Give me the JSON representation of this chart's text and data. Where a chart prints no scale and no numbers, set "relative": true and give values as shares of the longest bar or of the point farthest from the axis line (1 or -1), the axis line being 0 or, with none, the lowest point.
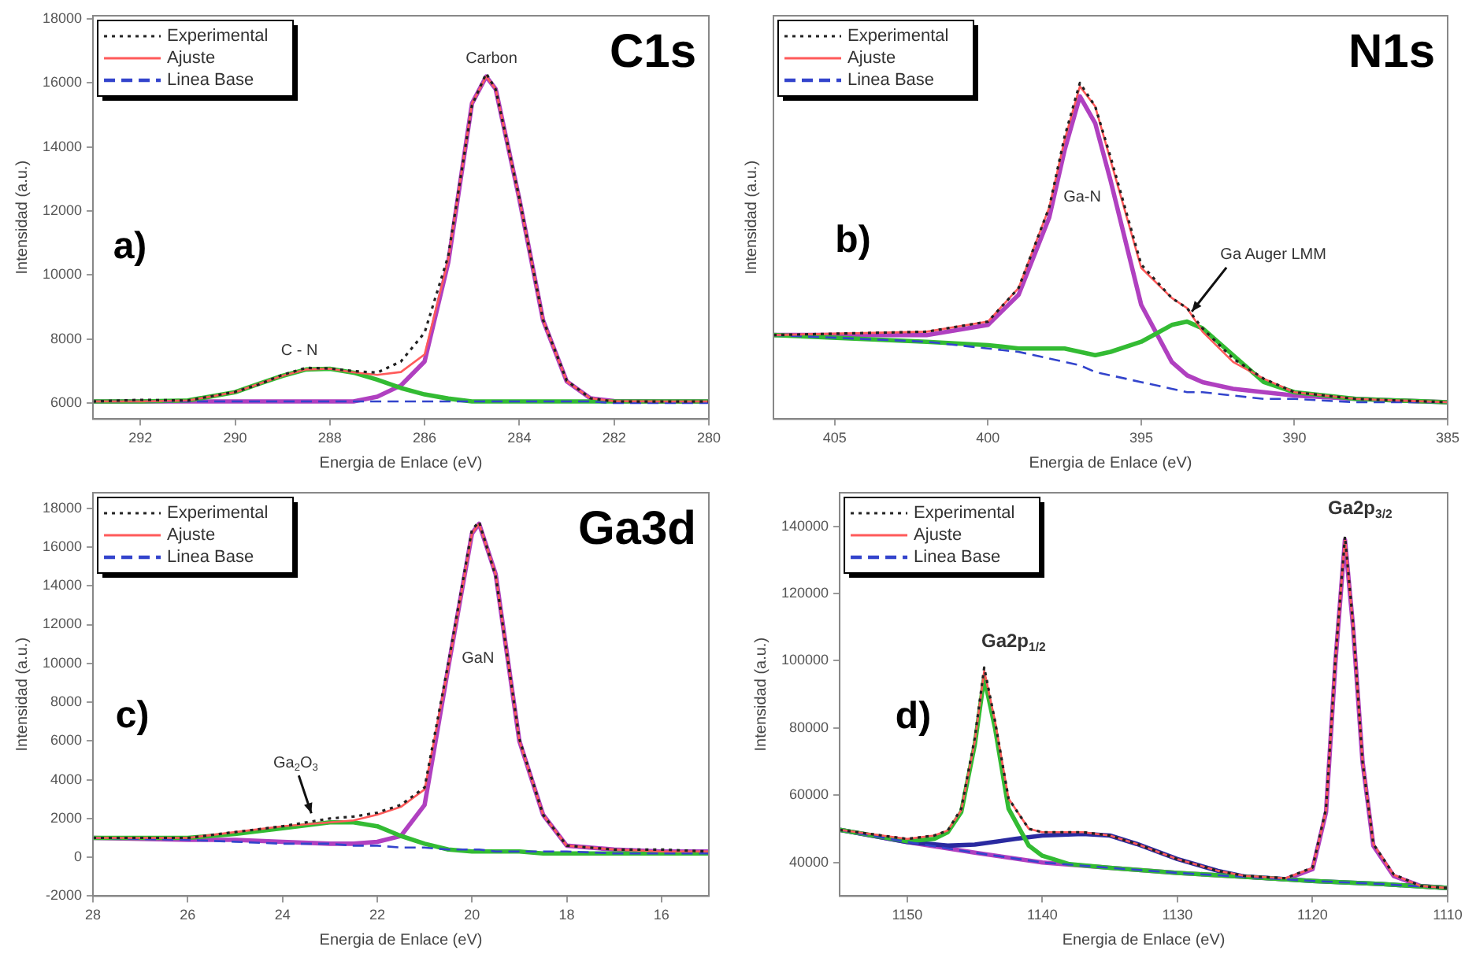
{
  "chart_data": [
    {
      "type": "line",
      "title": "C1s",
      "xlabel": "Energia de Enlace (eV)",
      "ylabel": "Intensidad (a.u.)",
      "legend": "top left",
      "grid": false,
      "marker": "none",
      "annotations": [
        "a)",
        "Carbon",
        "C - N"
      ],
      "x": [
        293,
        292,
        291,
        290,
        289.5,
        289,
        288.5,
        288,
        287.5,
        287,
        286.5,
        286,
        285.5,
        285,
        284.7,
        284.5,
        284,
        283.5,
        283,
        282.5,
        282,
        281,
        280
      ],
      "xlim": [
        293,
        280
      ],
      "xticks": [
        292,
        290,
        288,
        286,
        284,
        282,
        280
      ],
      "ylim": [
        5500,
        18100
      ],
      "yticks": [
        6000,
        8000,
        10000,
        12000,
        14000,
        16000,
        18000
      ],
      "series": [
        {
          "name": "Experimental",
          "color": "#222222",
          "line_style": "dotted",
          "values": [
            6050,
            6100,
            6080,
            6350,
            6580,
            6880,
            7100,
            7080,
            7000,
            6950,
            7300,
            8200,
            10600,
            15300,
            16300,
            15800,
            12400,
            8600,
            6700,
            6150,
            6050,
            6050,
            6050
          ]
        },
        {
          "name": "Ajuste",
          "color": "#ff5a5a",
          "line_style": "solid",
          "values": [
            6050,
            6050,
            6080,
            6340,
            6600,
            6850,
            7050,
            7070,
            6960,
            6880,
            6970,
            7520,
            10490,
            15360,
            16200,
            15810,
            12370,
            8590,
            6680,
            6150,
            6060,
            6050,
            6050
          ]
        },
        {
          "name": "Linea Base",
          "color": "#3344cc",
          "line_style": "dashed",
          "values": [
            6050,
            6050,
            6050,
            6050,
            6050,
            6050,
            6050,
            6050,
            6050,
            6050,
            6050,
            6050,
            6050,
            6050,
            6050,
            6050,
            6050,
            6050,
            6050,
            6050,
            6000,
            6000,
            6000
          ]
        },
        {
          "color": "#33bb33",
          "line_style": "solid",
          "values": [
            6050,
            6050,
            6080,
            6340,
            6600,
            6850,
            7050,
            7070,
            6950,
            6730,
            6470,
            6270,
            6140,
            6050,
            6050,
            6050,
            6050,
            6050,
            6050,
            6050,
            6050,
            6050,
            6050
          ]
        },
        {
          "color": "#b040c0",
          "line_style": "solid",
          "values": [
            6050,
            6050,
            6050,
            6050,
            6050,
            6050,
            6050,
            6050,
            6050,
            6200,
            6550,
            7300,
            10400,
            15360,
            16200,
            15810,
            12370,
            8590,
            6680,
            6150,
            6060,
            6050,
            6050
          ]
        }
      ]
    },
    {
      "type": "line",
      "title": "N1s",
      "xlabel": "Energia de Enlace (eV)",
      "ylabel": "Intensidad (a.u.)",
      "legend": "top left",
      "grid": false,
      "marker": "none",
      "relative": true,
      "annotations": [
        "b)",
        "Ga-N",
        "Ga Auger LMM"
      ],
      "x": [
        407,
        402,
        400,
        399,
        398,
        397.5,
        397,
        396.5,
        396,
        395,
        394,
        393.5,
        393,
        392,
        391,
        390,
        388,
        385
      ],
      "xlim": [
        407,
        385
      ],
      "xticks": [
        405,
        400,
        395,
        390,
        385
      ],
      "series": [
        {
          "name": "Experimental",
          "color": "#222222",
          "line_style": "dotted",
          "values": [
            0.25,
            0.26,
            0.29,
            0.39,
            0.63,
            0.84,
            1,
            0.93,
            0.78,
            0.46,
            0.36,
            0.33,
            0.27,
            0.18,
            0.12,
            0.08,
            0.06,
            0.05
          ]
        },
        {
          "name": "Ajuste",
          "color": "#ff5a5a",
          "line_style": "solid",
          "values": [
            0.25,
            0.26,
            0.29,
            0.39,
            0.63,
            0.83,
            0.99,
            0.93,
            0.77,
            0.45,
            0.36,
            0.33,
            0.26,
            0.17,
            0.12,
            0.08,
            0.06,
            0.05
          ]
        },
        {
          "name": "Linea Base",
          "color": "#3344cc",
          "line_style": "dashed",
          "values": [
            0.25,
            0.23,
            0.21,
            0.2,
            0.18,
            0.17,
            0.16,
            0.14,
            0.13,
            0.11,
            0.09,
            0.08,
            0.08,
            0.07,
            0.06,
            0.06,
            0.05,
            0.05
          ]
        },
        {
          "color": "#33bb33",
          "line_style": "solid",
          "values": [
            0.25,
            0.23,
            0.22,
            0.21,
            0.21,
            0.21,
            0.2,
            0.19,
            0.2,
            0.23,
            0.28,
            0.29,
            0.27,
            0.19,
            0.11,
            0.08,
            0.06,
            0.05
          ]
        },
        {
          "color": "#b040c0",
          "line_style": "solid",
          "values": [
            0.25,
            0.25,
            0.28,
            0.37,
            0.6,
            0.8,
            0.96,
            0.88,
            0.71,
            0.34,
            0.17,
            0.13,
            0.11,
            0.09,
            0.08,
            0.07,
            0.06,
            0.05
          ]
        }
      ]
    },
    {
      "type": "line",
      "title": "Ga3d",
      "xlabel": "Energia de Enlace (eV)",
      "ylabel": "Intensidad (a.u.)",
      "legend": "top left",
      "grid": false,
      "marker": "none",
      "annotations": [
        "c)",
        "GaN",
        "Ga$_{2}$O$_{3}$"
      ],
      "x": [
        28,
        26,
        25,
        24,
        23,
        22.5,
        22,
        21.5,
        21,
        20.5,
        20,
        19.85,
        19.5,
        19,
        18.5,
        18,
        17,
        16,
        15
      ],
      "xlim": [
        28,
        15
      ],
      "xticks": [
        28,
        26,
        24,
        22,
        20,
        18,
        16
      ],
      "ylim": [
        -2000,
        18800
      ],
      "yticks": [
        -2000,
        0,
        2000,
        4000,
        6000,
        8000,
        10000,
        12000,
        14000,
        16000,
        18000
      ],
      "series": [
        {
          "name": "Experimental",
          "color": "#222222",
          "line_style": "dotted",
          "values": [
            1000,
            1000,
            1300,
            1600,
            2000,
            2100,
            2300,
            2700,
            3600,
            10000,
            16900,
            17300,
            14500,
            6100,
            2200,
            600,
            400,
            400,
            300
          ]
        },
        {
          "name": "Ajuste",
          "color": "#ff5a5a",
          "line_style": "solid",
          "values": [
            1000,
            1000,
            1300,
            1600,
            1800,
            1900,
            2200,
            2600,
            3500,
            9800,
            16700,
            17200,
            14600,
            6000,
            2200,
            600,
            400,
            300,
            300
          ]
        },
        {
          "name": "Linea Base",
          "color": "#3344cc",
          "line_style": "dashed",
          "values": [
            1000,
            900,
            800,
            700,
            700,
            600,
            600,
            500,
            500,
            400,
            400,
            400,
            300,
            300,
            300,
            300,
            200,
            200,
            200
          ]
        },
        {
          "color": "#33bb33",
          "line_style": "solid",
          "values": [
            1000,
            1000,
            1200,
            1500,
            1800,
            1800,
            1600,
            1100,
            700,
            400,
            300,
            300,
            300,
            300,
            200,
            200,
            200,
            200,
            200
          ]
        },
        {
          "color": "#b040c0",
          "line_style": "solid",
          "values": [
            1000,
            900,
            900,
            800,
            700,
            700,
            800,
            1100,
            2700,
            9800,
            16700,
            17200,
            14600,
            6000,
            2200,
            600,
            400,
            300,
            300
          ]
        }
      ]
    },
    {
      "type": "line",
      "xlabel": "Energia de Enlace (eV)",
      "ylabel": "Intensidad (a.u.)",
      "legend": "top left",
      "grid": false,
      "marker": "none",
      "annotations": [
        "d)",
        "Ga2p$_{1/2}$",
        "Ga2p$_{3/2}$"
      ],
      "xlim": [
        1155,
        1110
      ],
      "xticks": [
        1150,
        1140,
        1130,
        1120,
        1110
      ],
      "ylim": [
        30000,
        150000
      ],
      "yticks": [
        40000,
        60000,
        80000,
        100000,
        120000,
        140000
      ],
      "series": [
        {
          "name": "Experimental",
          "color": "#222222",
          "line_style": "dotted",
          "x": [
            1155,
            1150,
            1148,
            1147,
            1146,
            1145,
            1144.3,
            1143.5,
            1142.5,
            1141,
            1140,
            1137,
            1135,
            1133,
            1130,
            1127,
            1125,
            1122,
            1120,
            1119,
            1118.3,
            1117.6,
            1117,
            1116.3,
            1115.5,
            1114,
            1112,
            1110
          ],
          "values": [
            49700,
            47000,
            48000,
            49500,
            56000,
            77000,
            98000,
            82000,
            59000,
            50000,
            49000,
            49000,
            48000,
            45500,
            41000,
            37500,
            36000,
            35300,
            38500,
            56000,
            101000,
            137000,
            111000,
            70000,
            45500,
            36500,
            33000,
            32400
          ]
        },
        {
          "name": "Ajuste",
          "color": "#ff5a5a",
          "line_style": "solid",
          "x": [
            1155,
            1150,
            1148,
            1147,
            1146,
            1145,
            1144.3,
            1143.5,
            1142.5,
            1141,
            1140,
            1137,
            1135,
            1133,
            1130,
            1127,
            1125,
            1122,
            1120,
            1119,
            1118.3,
            1117.6,
            1117,
            1116.3,
            1115.5,
            1114,
            1112,
            1110
          ],
          "values": [
            49700,
            47000,
            48000,
            49500,
            55500,
            76000,
            97000,
            82000,
            59000,
            50000,
            49000,
            49000,
            48000,
            45500,
            41000,
            37500,
            36000,
            35300,
            38300,
            55300,
            100300,
            136500,
            110300,
            70300,
            45500,
            36300,
            33000,
            32400
          ]
        },
        {
          "name": "Linea Base",
          "color": "#3344cc",
          "line_style": "dashed",
          "x": [
            1155,
            1150,
            1145,
            1140,
            1135,
            1130,
            1125,
            1120,
            1115,
            1110
          ],
          "values": [
            49700,
            46100,
            42900,
            40000,
            38400,
            36900,
            35700,
            34500,
            33600,
            32400
          ]
        },
        {
          "color": "#33bb33",
          "line_style": "solid",
          "x": [
            1155,
            1150,
            1148,
            1147,
            1146,
            1145,
            1144.3,
            1143.5,
            1142.5,
            1141,
            1140,
            1138,
            1135,
            1130,
            1125,
            1120,
            1115,
            1110
          ],
          "values": [
            49700,
            46300,
            47000,
            49000,
            55000,
            75000,
            95000,
            80000,
            56000,
            45000,
            42000,
            39500,
            38400,
            36900,
            35700,
            34500,
            33600,
            32400
          ]
        },
        {
          "color": "#2a2aa0",
          "line_style": "solid",
          "x": [
            1155,
            1150,
            1147,
            1145,
            1142,
            1140,
            1137,
            1135,
            1133,
            1130,
            1127,
            1125,
            1120,
            1115,
            1110
          ],
          "values": [
            49700,
            46100,
            45000,
            45300,
            47000,
            48000,
            48500,
            48000,
            45500,
            41000,
            37500,
            35800,
            34500,
            33600,
            32400
          ]
        },
        {
          "color": "#b040c0",
          "line_style": "solid",
          "x": [
            1155,
            1150,
            1145,
            1140,
            1135,
            1130,
            1125,
            1122,
            1120,
            1119,
            1118.3,
            1117.6,
            1117,
            1116.3,
            1115.5,
            1114,
            1112,
            1110
          ],
          "values": [
            49700,
            46100,
            42900,
            40000,
            38400,
            36900,
            35700,
            35000,
            38000,
            55000,
            100000,
            136000,
            110000,
            70000,
            45000,
            36000,
            33000,
            32400
          ]
        }
      ]
    }
  ]
}
